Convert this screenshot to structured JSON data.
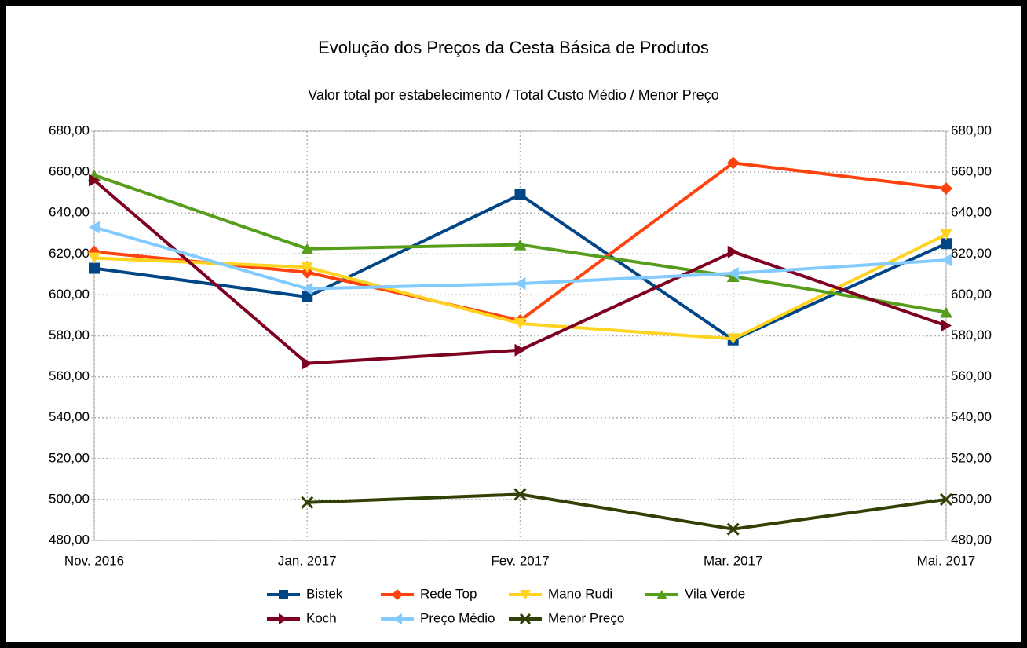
{
  "chart_data": {
    "type": "line",
    "title": "Evolução dos Preços da Cesta Básica de Produtos",
    "subtitle": "Valor total por estabelecimento / Total Custo Médio / Menor Preço",
    "categories": [
      "Nov. 2016",
      "Jan. 2017",
      "Fev. 2017",
      "Mar. 2017",
      "Mai. 2017"
    ],
    "series": [
      {
        "name": "Bistek",
        "color": "#004586",
        "marker": "square",
        "values": [
          613,
          599,
          649,
          578,
          625
        ]
      },
      {
        "name": "Rede Top",
        "color": "#ff420e",
        "marker": "diamond",
        "values": [
          621,
          611,
          587.5,
          664.5,
          652
        ]
      },
      {
        "name": "Mano Rudi",
        "color": "#ffd320",
        "marker": "triangle-down",
        "values": [
          618,
          613.5,
          586,
          578.5,
          629.5
        ]
      },
      {
        "name": "Vila Verde",
        "color": "#579d1c",
        "marker": "triangle-up",
        "values": [
          658.5,
          622.5,
          624.5,
          609,
          591.5
        ]
      },
      {
        "name": "Koch",
        "color": "#7e0021",
        "marker": "triangle-right",
        "values": [
          656,
          566.5,
          573,
          621,
          585
        ]
      },
      {
        "name": "Preço Médio",
        "color": "#83caff",
        "marker": "triangle-left",
        "values": [
          633,
          603,
          605.5,
          610.5,
          617
        ]
      },
      {
        "name": "Menor Preço",
        "color": "#314004",
        "marker": "cross",
        "values": [
          null,
          498.5,
          502.5,
          485.5,
          500
        ]
      }
    ],
    "ylim": [
      480,
      680
    ],
    "yticks": [
      {
        "value": 480,
        "label": "480,00"
      },
      {
        "value": 500,
        "label": "500,00"
      },
      {
        "value": 520,
        "label": "520,00"
      },
      {
        "value": 540,
        "label": "540,00"
      },
      {
        "value": 560,
        "label": "560,00"
      },
      {
        "value": 580,
        "label": "580,00"
      },
      {
        "value": 600,
        "label": "600,00"
      },
      {
        "value": 620,
        "label": "620,00"
      },
      {
        "value": 640,
        "label": "640,00"
      },
      {
        "value": 660,
        "label": "660,00"
      },
      {
        "value": 680,
        "label": "680,00"
      }
    ],
    "y2lim": [
      480,
      680
    ],
    "y2ticks": [
      {
        "value": 480,
        "label": "480,00"
      },
      {
        "value": 500,
        "label": "500,00"
      },
      {
        "value": 520,
        "label": "520,00"
      },
      {
        "value": 540,
        "label": "540,00"
      },
      {
        "value": 560,
        "label": "560,00"
      },
      {
        "value": 580,
        "label": "580,00"
      },
      {
        "value": 600,
        "label": "600,00"
      },
      {
        "value": 620,
        "label": "620,00"
      },
      {
        "value": 640,
        "label": "640,00"
      },
      {
        "value": 660,
        "label": "660,00"
      },
      {
        "value": 680,
        "label": "680,00"
      }
    ],
    "grid": true,
    "legend": "bottom"
  }
}
